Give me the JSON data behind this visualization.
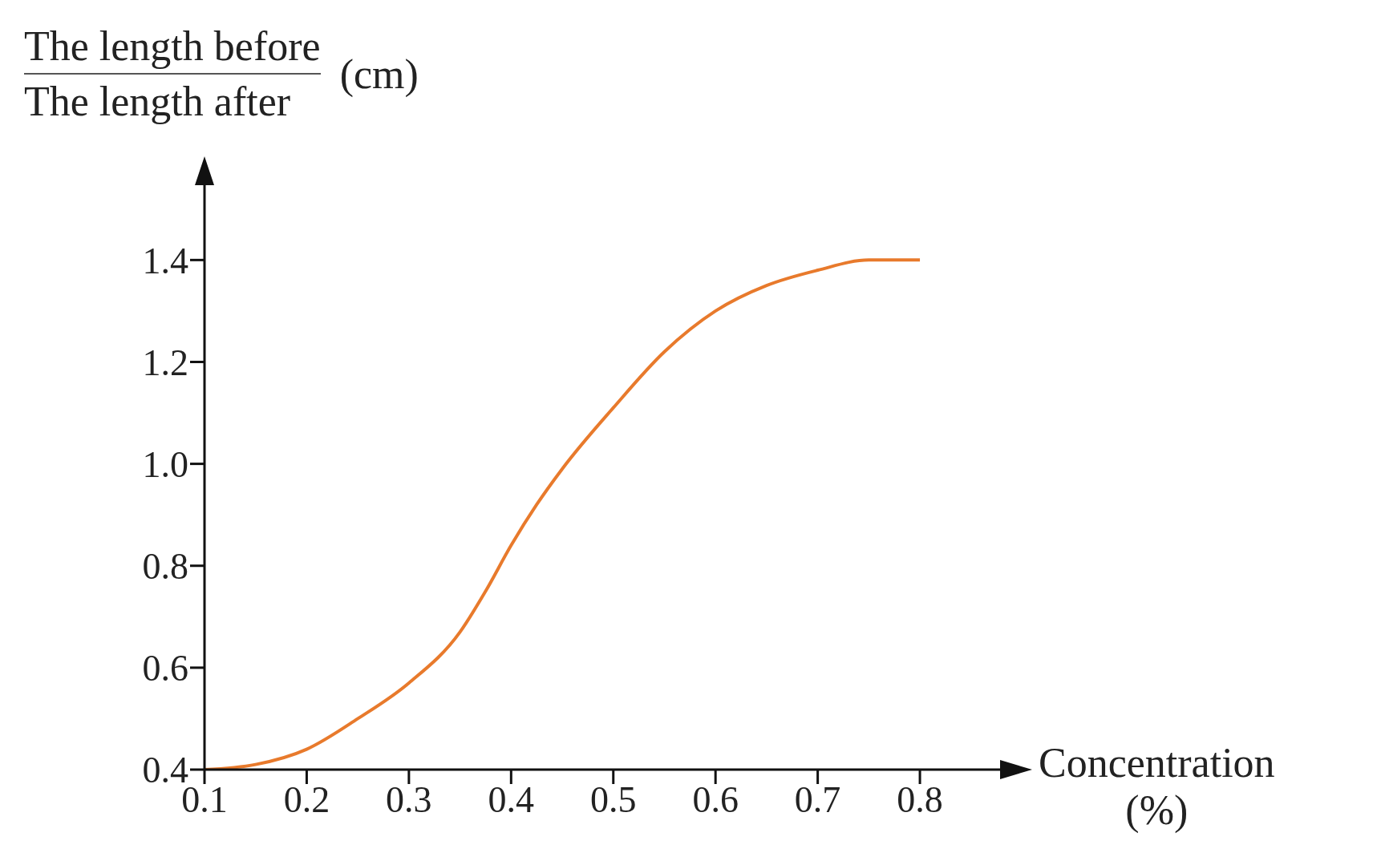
{
  "chart_data": {
    "type": "line",
    "ylabel": "The length before\nThe length after (cm)",
    "xlabel": "Concentration (%)",
    "x": [
      0.1,
      0.15,
      0.2,
      0.25,
      0.3,
      0.35,
      0.375,
      0.4,
      0.425,
      0.45,
      0.5,
      0.55,
      0.6,
      0.65,
      0.7,
      0.75,
      0.8
    ],
    "series": [
      {
        "color": "#e87a2c",
        "values": [
          0.4,
          0.41,
          0.44,
          0.5,
          0.57,
          0.67,
          0.75,
          0.84,
          0.92,
          0.99,
          1.11,
          1.22,
          1.3,
          1.35,
          1.38,
          1.4,
          1.4
        ]
      }
    ],
    "xlim": [
      0.1,
      0.88
    ],
    "ylim": [
      0.4,
      1.55
    ],
    "xticks": [
      0.1,
      0.2,
      0.3,
      0.4,
      0.5,
      0.6,
      0.7,
      0.8
    ],
    "yticks": [
      0.4,
      0.6,
      0.8,
      {
        "value": 1,
        "label": "1.0"
      },
      1.2,
      1.4
    ]
  }
}
